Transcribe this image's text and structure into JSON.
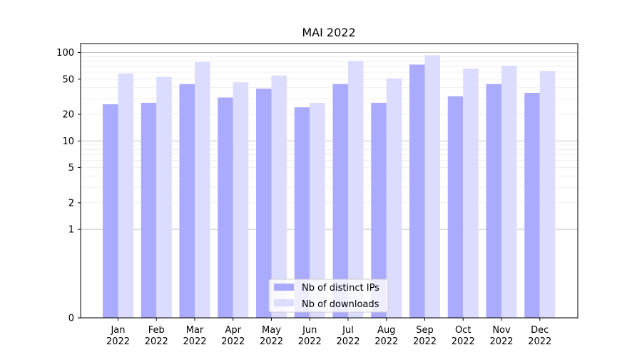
{
  "chart_data": {
    "type": "bar",
    "title": "MAI 2022",
    "xlabel": "",
    "ylabel": "",
    "y_scale": "symlog",
    "y_ticks": [
      0,
      1,
      2,
      5,
      10,
      20,
      50,
      100
    ],
    "y_tick_labels": [
      "0",
      "1",
      "2",
      "5",
      "10",
      "20",
      "50",
      "100"
    ],
    "ylim": [
      0,
      120
    ],
    "grid": "horizontal",
    "legend_position": "bottom-center",
    "categories": [
      "Jan\n2022",
      "Feb\n2022",
      "Mar\n2022",
      "Apr\n2022",
      "May\n2022",
      "Jun\n2022",
      "Jul\n2022",
      "Aug\n2022",
      "Sep\n2022",
      "Oct\n2022",
      "Nov\n2022",
      "Dec\n2022"
    ],
    "series": [
      {
        "name": "Nb of distinct IPs",
        "color": "#aaaaff",
        "values": [
          26,
          27,
          44,
          31,
          39,
          24,
          44,
          27,
          73,
          32,
          44,
          35
        ]
      },
      {
        "name": "Nb of downloads",
        "color": "#dcdcff",
        "values": [
          58,
          53,
          78,
          46,
          55,
          27,
          80,
          51,
          93,
          66,
          71,
          62
        ]
      }
    ]
  }
}
